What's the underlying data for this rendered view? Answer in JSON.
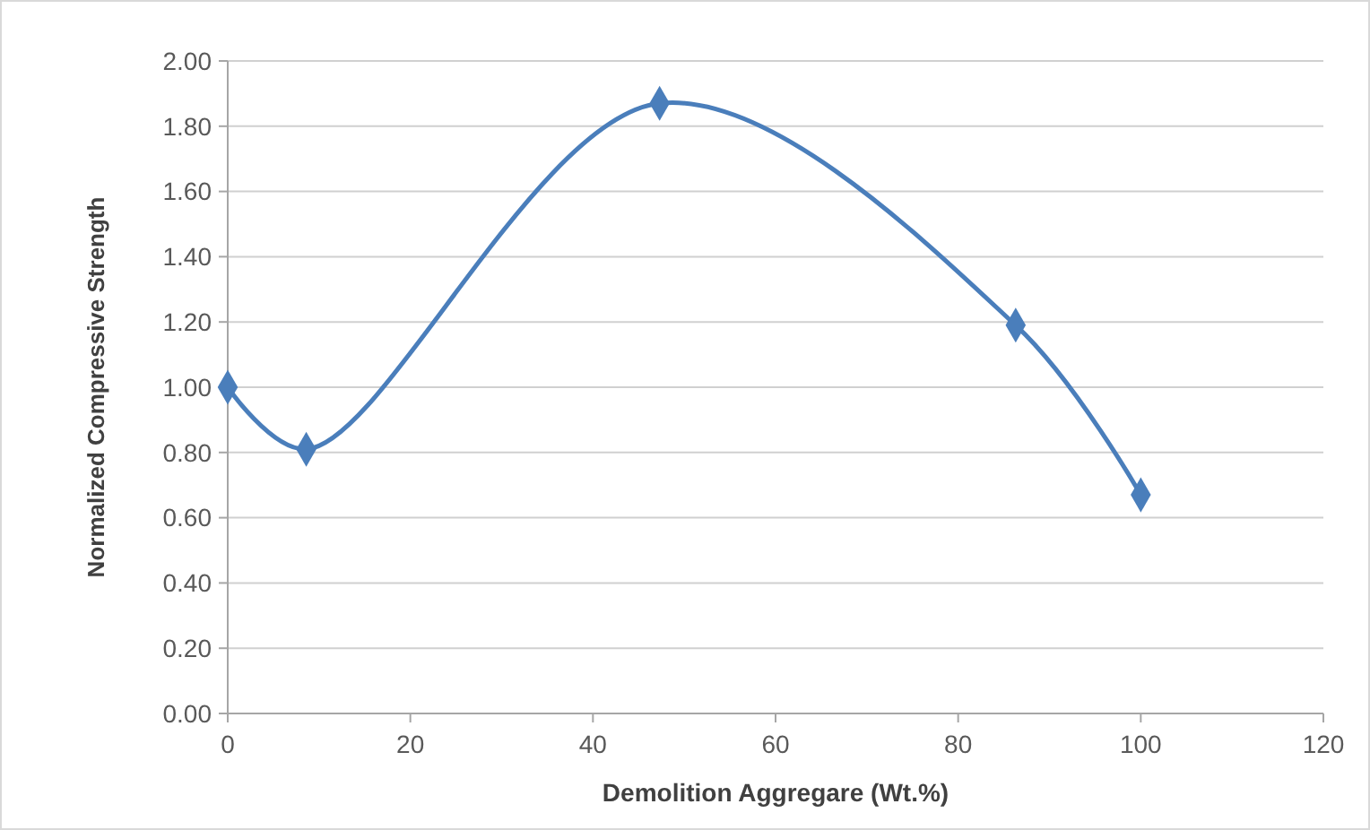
{
  "chart_data": {
    "type": "line",
    "xlabel": "Demolition Aggregare (Wt.%)",
    "ylabel": "Normalized Compressive Strength",
    "x": [
      0,
      8.6,
      47.3,
      86.3,
      100
    ],
    "series": [
      {
        "color": "#4a7ebb",
        "values": [
          1.0,
          0.81,
          1.87,
          1.19,
          0.67
        ]
      }
    ],
    "xlim": [
      0,
      120
    ],
    "xticks": [
      0,
      20,
      40,
      60,
      80,
      100,
      120
    ],
    "ylim": [
      0,
      2
    ],
    "yticks": [
      {
        "value": 0,
        "label": "0.00"
      },
      {
        "value": 0.2,
        "label": "0.20"
      },
      {
        "value": 0.4,
        "label": "0.40"
      },
      {
        "value": 0.6,
        "label": "0.60"
      },
      {
        "value": 0.8,
        "label": "0.80"
      },
      {
        "value": 1,
        "label": "1.00"
      },
      {
        "value": 1.2,
        "label": "1.20"
      },
      {
        "value": 1.4,
        "label": "1.40"
      },
      {
        "value": 1.6,
        "label": "1.60"
      },
      {
        "value": 1.8,
        "label": "1.80"
      },
      {
        "value": 2,
        "label": "2.00"
      }
    ],
    "grid": "y",
    "marker": "diamond",
    "line_style": "solid"
  }
}
